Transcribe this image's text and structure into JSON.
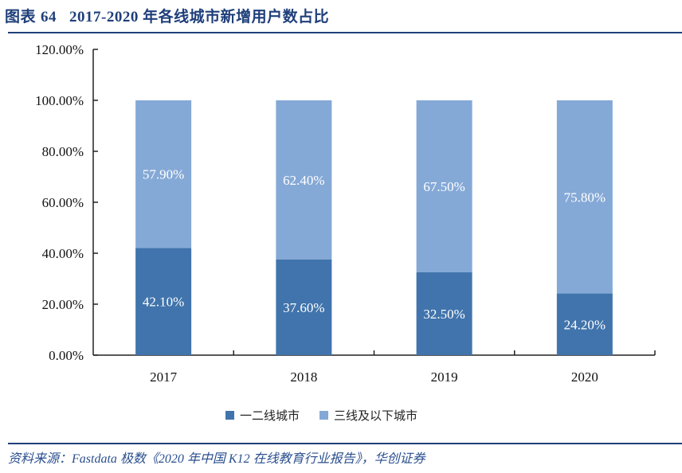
{
  "header": {
    "figure_prefix": "图表",
    "figure_number": "64",
    "title_text": "2017-2020 年各线城市新增用户数占比"
  },
  "footer": {
    "source": "资料来源：Fastdata 极数《2020 年中国 K12 在线教育行业报告》，华创证券"
  },
  "chart_data": {
    "type": "bar",
    "stacked": true,
    "title": "2017-2020 年各线城市新增用户数占比",
    "xlabel": "",
    "ylabel": "",
    "categories": [
      "2017",
      "2018",
      "2019",
      "2020"
    ],
    "series": [
      {
        "name": "一二线城市",
        "values": [
          42.1,
          37.6,
          32.5,
          24.2
        ],
        "labels": [
          "42.10%",
          "37.60%",
          "32.50%",
          "24.20%"
        ],
        "color": "#4174ac"
      },
      {
        "name": "三线及以下城市",
        "values": [
          57.9,
          62.4,
          67.5,
          75.8
        ],
        "labels": [
          "57.90%",
          "62.40%",
          "67.50%",
          "75.80%"
        ],
        "color": "#85a9d6"
      }
    ],
    "ylim": [
      0,
      120
    ],
    "yticks": [
      0,
      20,
      40,
      60,
      80,
      100,
      120
    ],
    "ytick_labels": [
      "0.00%",
      "20.00%",
      "40.00%",
      "60.00%",
      "80.00%",
      "100.00%",
      "120.00%"
    ],
    "grid": false,
    "legend_position": "bottom"
  }
}
